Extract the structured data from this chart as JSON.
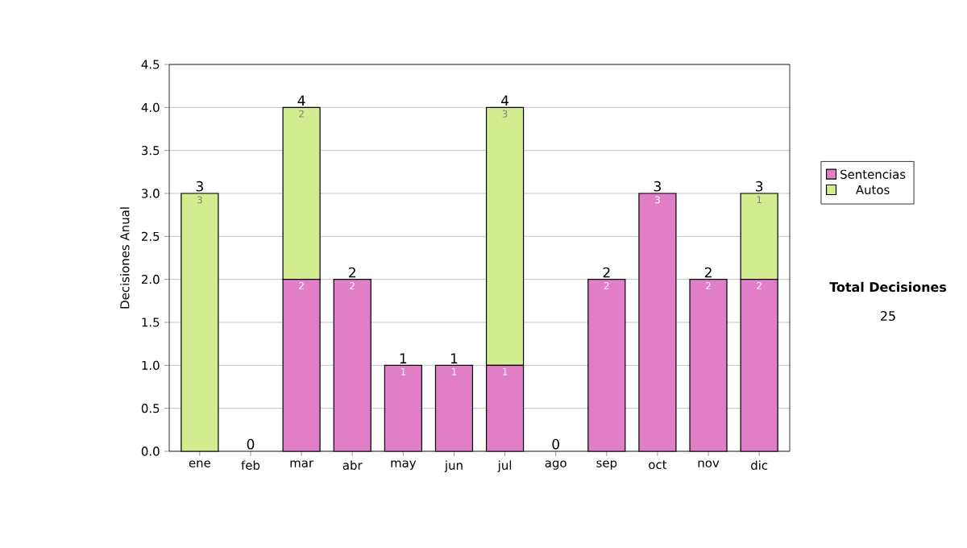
{
  "chart_data": {
    "type": "bar",
    "stacked": true,
    "ylabel": "Decisiones Anual",
    "categories": [
      "ene",
      "feb",
      "mar",
      "abr",
      "may",
      "jun",
      "jul",
      "ago",
      "sep",
      "oct",
      "nov",
      "dic"
    ],
    "series": [
      {
        "name": "Sentencias",
        "color": "#e07ec8",
        "values": [
          0,
          0,
          2,
          2,
          1,
          1,
          1,
          0,
          2,
          3,
          2,
          2
        ],
        "value_labels": [
          null,
          null,
          "2",
          "2",
          "1",
          "1",
          "1",
          null,
          "2",
          "3",
          "2",
          "2"
        ]
      },
      {
        "name": "Autos",
        "color": "#d4ec90",
        "values": [
          3,
          0,
          2,
          0,
          0,
          0,
          3,
          0,
          0,
          0,
          0,
          1
        ],
        "value_labels": [
          "3",
          null,
          "2",
          null,
          null,
          null,
          "3",
          null,
          null,
          null,
          null,
          "1"
        ]
      }
    ],
    "totals": [
      "3",
      "0",
      "4",
      "2",
      "1",
      "1",
      "4",
      "0",
      "2",
      "3",
      "2",
      "3"
    ],
    "ylim": [
      0,
      4.5
    ],
    "yticks": [
      {
        "value": 0,
        "label": "0.0"
      },
      {
        "value": 0.5,
        "label": "0.5"
      },
      {
        "value": 1,
        "label": "1.0"
      },
      {
        "value": 1.5,
        "label": "1.5"
      },
      {
        "value": 2,
        "label": "2.0"
      },
      {
        "value": 2.5,
        "label": "2.5"
      },
      {
        "value": 3,
        "label": "3.0"
      },
      {
        "value": 3.5,
        "label": "3.5"
      },
      {
        "value": 4,
        "label": "4.0"
      },
      {
        "value": 4.5,
        "label": "4.5"
      }
    ],
    "grid": "y",
    "legend": "right",
    "annotations": [
      "**Total Decisiones**",
      "25"
    ]
  }
}
